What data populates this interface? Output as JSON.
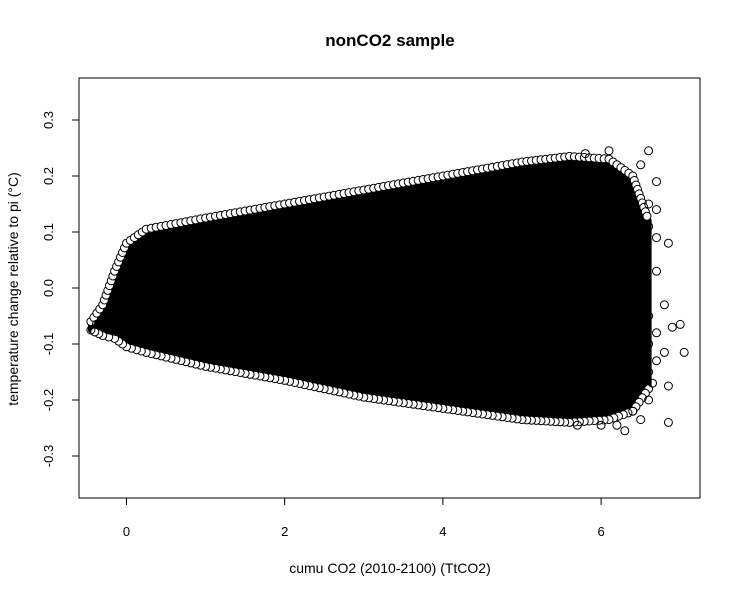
{
  "chart_data": {
    "type": "scatter",
    "title": "nonCO2 sample",
    "xlabel": "cumu CO2 (2010-2100) (TtCO2)",
    "ylabel": "temperature change relative to pi (°C)",
    "xlim": [
      -0.6,
      7.25
    ],
    "ylim": [
      -0.375,
      0.375
    ],
    "x_ticks": [
      "0",
      "2",
      "4",
      "6"
    ],
    "y_ticks": [
      "-0.3",
      "-0.2",
      "-0.1",
      "0.0",
      "0.1",
      "0.2",
      "0.3"
    ],
    "grid": false,
    "marker": "open-circle",
    "point_color": "#000000",
    "cloud_envelope": {
      "upper": [
        {
          "x": -0.45,
          "y": -0.06
        },
        {
          "x": -0.3,
          "y": -0.03
        },
        {
          "x": -0.15,
          "y": 0.03
        },
        {
          "x": 0.0,
          "y": 0.08
        },
        {
          "x": 0.25,
          "y": 0.105
        },
        {
          "x": 1.0,
          "y": 0.125
        },
        {
          "x": 2.0,
          "y": 0.15
        },
        {
          "x": 3.0,
          "y": 0.175
        },
        {
          "x": 4.0,
          "y": 0.2
        },
        {
          "x": 5.0,
          "y": 0.225
        },
        {
          "x": 5.6,
          "y": 0.235
        },
        {
          "x": 6.1,
          "y": 0.23
        },
        {
          "x": 6.4,
          "y": 0.2
        },
        {
          "x": 6.6,
          "y": 0.12
        }
      ],
      "lower": [
        {
          "x": 6.6,
          "y": -0.18
        },
        {
          "x": 6.4,
          "y": -0.22
        },
        {
          "x": 6.1,
          "y": -0.235
        },
        {
          "x": 5.6,
          "y": -0.24
        },
        {
          "x": 5.0,
          "y": -0.235
        },
        {
          "x": 4.0,
          "y": -0.215
        },
        {
          "x": 3.0,
          "y": -0.195
        },
        {
          "x": 2.0,
          "y": -0.165
        },
        {
          "x": 1.0,
          "y": -0.14
        },
        {
          "x": 0.25,
          "y": -0.115
        },
        {
          "x": 0.0,
          "y": -0.105
        },
        {
          "x": -0.15,
          "y": -0.09
        },
        {
          "x": -0.3,
          "y": -0.085
        },
        {
          "x": -0.45,
          "y": -0.075
        }
      ]
    },
    "outliers": [
      {
        "x": -0.45,
        "y": -0.075
      },
      {
        "x": -0.38,
        "y": -0.065
      },
      {
        "x": -0.32,
        "y": -0.06
      },
      {
        "x": 5.8,
        "y": 0.24
      },
      {
        "x": 6.1,
        "y": 0.245
      },
      {
        "x": 6.6,
        "y": 0.245
      },
      {
        "x": 6.5,
        "y": 0.22
      },
      {
        "x": 6.7,
        "y": 0.19
      },
      {
        "x": 6.6,
        "y": 0.15
      },
      {
        "x": 6.7,
        "y": 0.14
      },
      {
        "x": 6.6,
        "y": 0.11
      },
      {
        "x": 6.7,
        "y": 0.09
      },
      {
        "x": 6.85,
        "y": 0.08
      },
      {
        "x": 6.5,
        "y": 0.06
      },
      {
        "x": 6.7,
        "y": 0.03
      },
      {
        "x": 6.8,
        "y": -0.03
      },
      {
        "x": 6.6,
        "y": -0.05
      },
      {
        "x": 6.9,
        "y": -0.07
      },
      {
        "x": 7.0,
        "y": -0.065
      },
      {
        "x": 6.7,
        "y": -0.08
      },
      {
        "x": 6.6,
        "y": -0.1
      },
      {
        "x": 6.8,
        "y": -0.115
      },
      {
        "x": 7.05,
        "y": -0.115
      },
      {
        "x": 6.7,
        "y": -0.13
      },
      {
        "x": 6.6,
        "y": -0.15
      },
      {
        "x": 6.55,
        "y": -0.16
      },
      {
        "x": 6.65,
        "y": -0.17
      },
      {
        "x": 6.85,
        "y": -0.175
      },
      {
        "x": 6.6,
        "y": -0.2
      },
      {
        "x": 6.4,
        "y": -0.22
      },
      {
        "x": 6.2,
        "y": -0.245
      },
      {
        "x": 6.3,
        "y": -0.255
      },
      {
        "x": 6.5,
        "y": -0.235
      },
      {
        "x": 6.85,
        "y": -0.24
      },
      {
        "x": 6.0,
        "y": -0.245
      },
      {
        "x": 5.7,
        "y": -0.245
      }
    ]
  }
}
